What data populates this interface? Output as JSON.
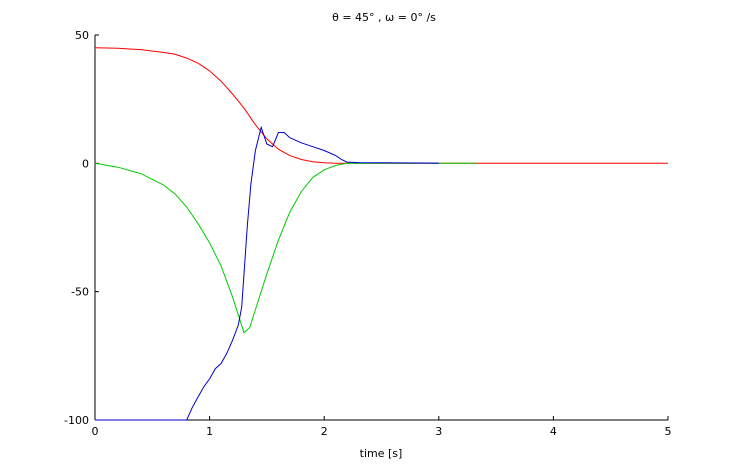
{
  "chart_data": {
    "type": "line",
    "title": "θ = 45° , ω = 0° /s",
    "xlabel": "time [s]",
    "ylabel": "",
    "xlim": [
      0,
      5
    ],
    "ylim": [
      -100,
      50
    ],
    "x_ticks": [
      0,
      1,
      2,
      3,
      4,
      5
    ],
    "x_tick_labels": [
      "0",
      "1",
      "2",
      "3",
      "4",
      "5"
    ],
    "y_ticks": [
      50,
      0,
      -50,
      -100
    ],
    "y_tick_labels": [
      "50",
      "0",
      "-50",
      "-100"
    ],
    "grid": false,
    "legend": "none",
    "series": [
      {
        "color": "#ff0000",
        "points": [
          [
            0,
            45
          ],
          [
            0.2,
            44.8
          ],
          [
            0.4,
            44.3
          ],
          [
            0.6,
            43.2
          ],
          [
            0.7,
            42.5
          ],
          [
            0.8,
            41
          ],
          [
            0.9,
            39
          ],
          [
            1.0,
            36
          ],
          [
            1.1,
            32
          ],
          [
            1.2,
            27
          ],
          [
            1.3,
            21.5
          ],
          [
            1.4,
            15
          ],
          [
            1.5,
            9.5
          ],
          [
            1.6,
            5.5
          ],
          [
            1.7,
            3
          ],
          [
            1.8,
            1.5
          ],
          [
            1.9,
            0.6
          ],
          [
            2.0,
            0.2
          ],
          [
            2.1,
            0
          ],
          [
            2.5,
            0
          ],
          [
            3,
            0
          ],
          [
            4,
            0
          ],
          [
            5,
            0
          ]
        ]
      },
      {
        "color": "#00cc00",
        "points": [
          [
            0,
            0
          ],
          [
            0.2,
            -1.5
          ],
          [
            0.4,
            -4
          ],
          [
            0.6,
            -8.5
          ],
          [
            0.7,
            -12
          ],
          [
            0.8,
            -17
          ],
          [
            0.9,
            -23.5
          ],
          [
            1.0,
            -31
          ],
          [
            1.1,
            -40
          ],
          [
            1.2,
            -52
          ],
          [
            1.3,
            -66
          ],
          [
            1.35,
            -64
          ],
          [
            1.4,
            -57
          ],
          [
            1.5,
            -43
          ],
          [
            1.6,
            -30
          ],
          [
            1.7,
            -19
          ],
          [
            1.8,
            -11
          ],
          [
            1.9,
            -5.5
          ],
          [
            2.0,
            -2.5
          ],
          [
            2.1,
            -0.8
          ],
          [
            2.2,
            0
          ],
          [
            2.5,
            0
          ],
          [
            3.0,
            0
          ],
          [
            3.33,
            0
          ]
        ]
      },
      {
        "color": "#0000cc",
        "points": [
          [
            0,
            -100
          ],
          [
            0.8,
            -100
          ],
          [
            0.85,
            -95
          ],
          [
            0.9,
            -91
          ],
          [
            0.95,
            -87
          ],
          [
            1.0,
            -84
          ],
          [
            1.05,
            -80
          ],
          [
            1.1,
            -78
          ],
          [
            1.15,
            -74
          ],
          [
            1.2,
            -69
          ],
          [
            1.25,
            -63
          ],
          [
            1.28,
            -56
          ],
          [
            1.3,
            -43
          ],
          [
            1.33,
            -24
          ],
          [
            1.36,
            -8
          ],
          [
            1.4,
            5
          ],
          [
            1.45,
            14
          ],
          [
            1.5,
            7.5
          ],
          [
            1.55,
            6.5
          ],
          [
            1.6,
            12
          ],
          [
            1.65,
            12
          ],
          [
            1.7,
            10
          ],
          [
            1.8,
            8
          ],
          [
            1.9,
            6.5
          ],
          [
            2.0,
            5
          ],
          [
            2.1,
            3
          ],
          [
            2.15,
            1.5
          ],
          [
            2.2,
            0.5
          ],
          [
            2.3,
            0.3
          ],
          [
            2.5,
            0.2
          ],
          [
            3.0,
            0.1
          ]
        ]
      }
    ]
  }
}
